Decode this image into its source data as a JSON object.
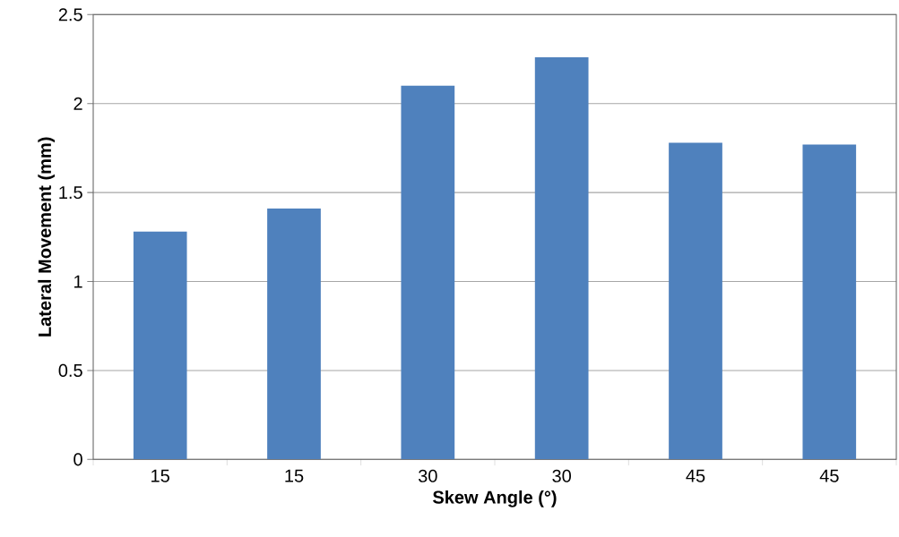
{
  "chart_data": {
    "type": "bar",
    "xlabel": "Skew Angle (°)",
    "ylabel": "Lateral Movement (mm)",
    "categories": [
      "15",
      "15",
      "30",
      "30",
      "45",
      "45"
    ],
    "values": [
      1.28,
      1.41,
      2.1,
      2.26,
      1.78,
      1.77
    ],
    "color": "#4f81bd",
    "ylim": [
      0,
      2.5
    ],
    "yticks": [
      0,
      0.5,
      1,
      1.5,
      2,
      2.5
    ],
    "grid": "y"
  }
}
